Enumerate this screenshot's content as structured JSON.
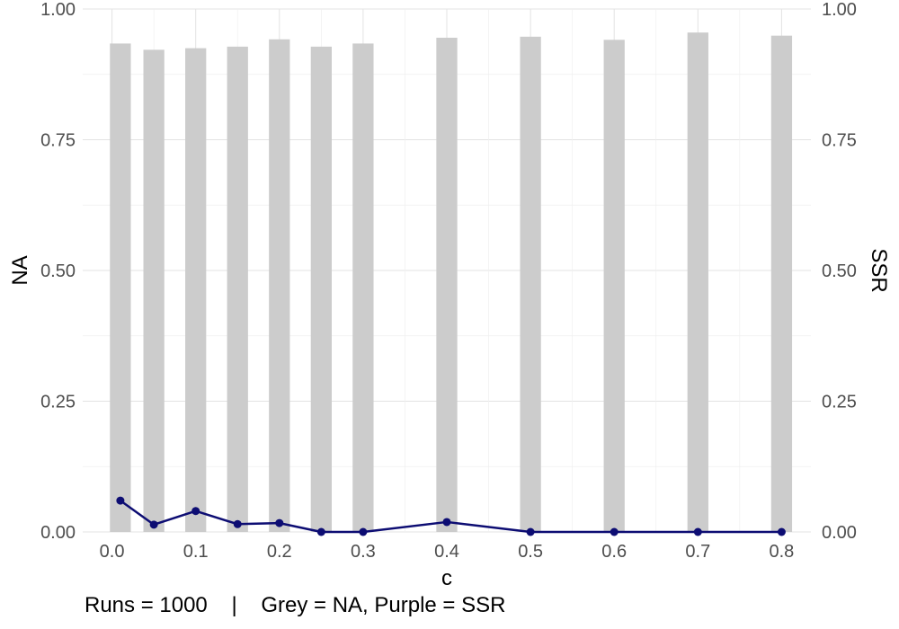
{
  "chart_data": {
    "type": "bar",
    "xlabel": "c",
    "ylabel": "NA",
    "ylabel_right": "SSR",
    "ylim": [
      0,
      1
    ],
    "yticks": [
      "0.00",
      "0.25",
      "0.50",
      "0.75",
      "1.00"
    ],
    "xlim": [
      -0.035,
      0.835
    ],
    "xticks": [
      "0.0",
      "0.1",
      "0.2",
      "0.3",
      "0.4",
      "0.5",
      "0.6",
      "0.7",
      "0.8"
    ],
    "grid": true,
    "bar_width": 0.025,
    "x": [
      0.01,
      0.05,
      0.1,
      0.15,
      0.2,
      0.25,
      0.3,
      0.4,
      0.5,
      0.6,
      0.7,
      0.8
    ],
    "series": [
      {
        "type": "bar",
        "axis": "left",
        "values": [
          0.934,
          0.922,
          0.925,
          0.928,
          0.942,
          0.928,
          0.934,
          0.945,
          0.947,
          0.941,
          0.955,
          0.949
        ]
      },
      {
        "type": "line",
        "axis": "right",
        "values": [
          0.06,
          0.014,
          0.04,
          0.015,
          0.017,
          0.0,
          0.0,
          0.019,
          0.0,
          0.0,
          0.0,
          0.0
        ]
      }
    ],
    "colors": {
      "bar": "#cccccc",
      "line": "#0d0d73",
      "grid": "#e3e3e3"
    }
  },
  "caption": "Runs = 1000    |    Grey = NA, Purple = SSR"
}
